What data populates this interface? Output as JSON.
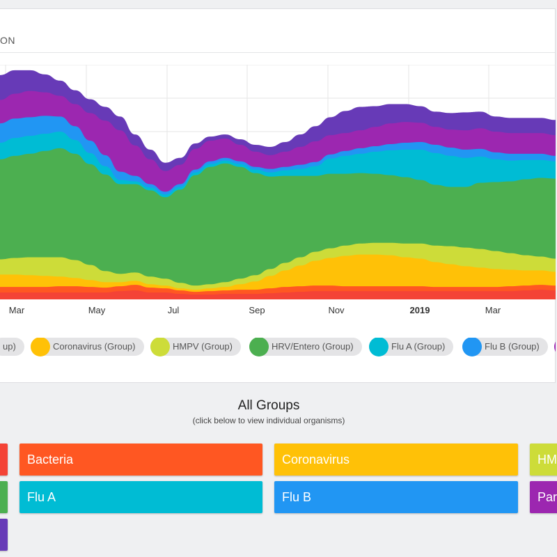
{
  "header": {
    "title": "ON"
  },
  "chart_data": {
    "type": "area",
    "stacked": true,
    "x_tick_labels": [
      {
        "label": "Mar",
        "bold": false
      },
      {
        "label": "May",
        "bold": false
      },
      {
        "label": "Jul",
        "bold": false
      },
      {
        "label": "Sep",
        "bold": false
      },
      {
        "label": "Nov",
        "bold": false
      },
      {
        "label": "2019",
        "bold": true
      },
      {
        "label": "Mar",
        "bold": false
      }
    ],
    "grid": true,
    "legend_position": "bottom",
    "series": [
      {
        "name": "",
        "color": "#f44336",
        "values": [
          10,
          10,
          10,
          10,
          10,
          10,
          10,
          10,
          12,
          13,
          10,
          10,
          8,
          7,
          7,
          8,
          8,
          8,
          9,
          10,
          11,
          12,
          12,
          12,
          12,
          12,
          12,
          12,
          12,
          12,
          12,
          12,
          12,
          12,
          12,
          13,
          14,
          13
        ]
      },
      {
        "name": "",
        "color": "#ff5722",
        "values": [
          8,
          8,
          8,
          8,
          9,
          9,
          8,
          7,
          7,
          8,
          7,
          6,
          5,
          4,
          5,
          5,
          6,
          6,
          7,
          8,
          8,
          8,
          8,
          7,
          7,
          7,
          7,
          7,
          7,
          6,
          6,
          6,
          6,
          6,
          7,
          7,
          7,
          7
        ]
      },
      {
        "name": "Coronavirus (Group)",
        "color": "#ffc107",
        "values": [
          18,
          18,
          17,
          16,
          14,
          12,
          10,
          8,
          6,
          6,
          5,
          4,
          3,
          3,
          4,
          5,
          8,
          12,
          18,
          24,
          30,
          36,
          40,
          44,
          46,
          46,
          45,
          42,
          40,
          36,
          33,
          30,
          28,
          26,
          24,
          22,
          21,
          20
        ]
      },
      {
        "name": "HMPV (Group)",
        "color": "#cddc39",
        "values": [
          22,
          24,
          26,
          27,
          28,
          26,
          22,
          16,
          12,
          12,
          11,
          10,
          8,
          6,
          6,
          7,
          8,
          9,
          10,
          11,
          12,
          13,
          14,
          15,
          16,
          17,
          18,
          20,
          22,
          24,
          26,
          27,
          27,
          26,
          24,
          22,
          20,
          19
        ]
      },
      {
        "name": "HRV/Entero (Group)",
        "color": "#4caf50",
        "values": [
          145,
          148,
          150,
          154,
          158,
          154,
          146,
          140,
          130,
          128,
          125,
          118,
          135,
          160,
          170,
          172,
          162,
          148,
          134,
          126,
          118,
          110,
          108,
          104,
          102,
          100,
          98,
          96,
          92,
          88,
          86,
          88,
          96,
          100,
          104,
          110,
          114,
          116
        ]
      },
      {
        "name": "Flu A (Group)",
        "color": "#00bcd4",
        "values": [
          24,
          26,
          26,
          25,
          24,
          20,
          16,
          12,
          6,
          4,
          4,
          4,
          4,
          4,
          4,
          4,
          4,
          5,
          6,
          8,
          10,
          14,
          22,
          26,
          28,
          32,
          36,
          40,
          44,
          46,
          45,
          42,
          38,
          33,
          30,
          28,
          26,
          25
        ]
      },
      {
        "name": "Flu B (Group)",
        "color": "#2196f3",
        "values": [
          28,
          28,
          27,
          26,
          22,
          20,
          18,
          16,
          12,
          8,
          5,
          4,
          4,
          4,
          4,
          4,
          4,
          4,
          5,
          5,
          6,
          6,
          6,
          7,
          8,
          8,
          9,
          10,
          11,
          12,
          12,
          12,
          11,
          10,
          10,
          9,
          9,
          8
        ]
      },
      {
        "name": "",
        "color": "#9c27b0",
        "values": [
          34,
          36,
          38,
          34,
          30,
          32,
          40,
          50,
          60,
          44,
          36,
          30,
          28,
          30,
          30,
          28,
          24,
          22,
          20,
          22,
          26,
          30,
          28,
          26,
          26,
          28,
          30,
          30,
          28,
          26,
          26,
          28,
          30,
          30,
          30,
          30,
          30,
          30
        ]
      },
      {
        "name": "",
        "color": "#673ab7",
        "values": [
          36,
          34,
          30,
          26,
          22,
          20,
          20,
          20,
          20,
          16,
          14,
          12,
          10,
          8,
          6,
          6,
          8,
          10,
          12,
          14,
          18,
          22,
          26,
          32,
          34,
          30,
          28,
          26,
          24,
          22,
          24,
          26,
          24,
          22,
          22,
          22,
          22,
          22
        ]
      }
    ]
  },
  "legend": {
    "items": [
      {
        "label": "up)",
        "color": "#f44336"
      },
      {
        "label": "Coronavirus (Group)",
        "color": "#ffc107"
      },
      {
        "label": "HMPV (Group)",
        "color": "#cddc39"
      },
      {
        "label": "HRV/Entero (Group)",
        "color": "#4caf50"
      },
      {
        "label": "Flu A (Group)",
        "color": "#00bcd4"
      },
      {
        "label": "Flu B (Group)",
        "color": "#2196f3"
      },
      {
        "label": "",
        "color": "#9c27b0"
      }
    ]
  },
  "groups_section": {
    "title": "All Groups",
    "subtitle": "(click below to view individual organisms)",
    "buttons": [
      {
        "label": "",
        "color": "#f44336"
      },
      {
        "label": "Bacteria",
        "color": "#ff5722"
      },
      {
        "label": "Coronavirus",
        "color": "#ffc107"
      },
      {
        "label": "HM",
        "color": "#cddc39"
      },
      {
        "label": "",
        "color": "#4caf50"
      },
      {
        "label": "Flu A",
        "color": "#00bcd4"
      },
      {
        "label": "Flu B",
        "color": "#2196f3"
      },
      {
        "label": "Par",
        "color": "#9c27b0"
      },
      {
        "label": "",
        "color": "#673ab7"
      }
    ]
  }
}
